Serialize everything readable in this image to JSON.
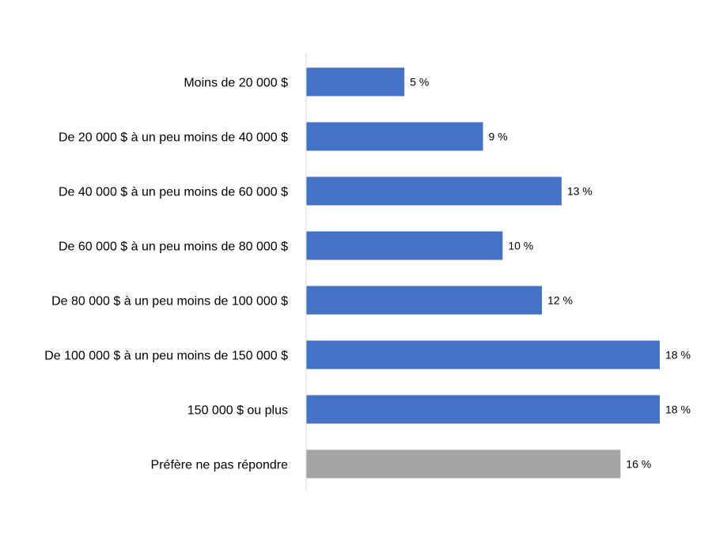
{
  "chart_data": {
    "type": "bar",
    "orientation": "horizontal",
    "categories": [
      "Moins de 20 000 $",
      "De 20 000 $ à un peu moins de 40 000 $",
      "De 40 000 $ à un peu moins de 60 000 $",
      "De 60 000 $ à un peu moins de 80 000 $",
      "De 80 000 $ à un peu moins de 100 000 $",
      "De 100 000 $ à un peu moins de 150 000 $",
      "150 000 $ ou plus",
      "Préfère ne pas répondre"
    ],
    "values": [
      5,
      9,
      13,
      10,
      12,
      18,
      18,
      16
    ],
    "data_labels": [
      "5 %",
      "9 %",
      "13 %",
      "10 %",
      "12 %",
      "18 %",
      "18 %",
      "16 %"
    ],
    "colors": [
      "#4472C4",
      "#4472C4",
      "#4472C4",
      "#4472C4",
      "#4472C4",
      "#4472C4",
      "#4472C4",
      "#A5A5A5"
    ],
    "axis_color": "#D9D9D9",
    "xlim": [
      0,
      18
    ],
    "title": "",
    "xlabel": "",
    "ylabel": "",
    "grid": false,
    "legend": "none"
  }
}
